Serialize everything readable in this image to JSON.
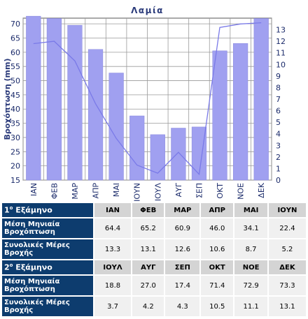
{
  "chart_data": {
    "type": "bar+line",
    "title": "Λαμία",
    "ylabel_left": "Βροχόπτωση (mm)",
    "ylim_left": [
      15,
      72
    ],
    "ylim_right": [
      0,
      14
    ],
    "yticks_left": [
      15,
      20,
      25,
      30,
      35,
      40,
      45,
      50,
      55,
      60,
      65,
      70
    ],
    "yticks_right": [
      0,
      1,
      2,
      3,
      4,
      5,
      6,
      7,
      8,
      9,
      10,
      11,
      12,
      13
    ],
    "categories": [
      "ΙΑΝ",
      "ΦΕΒ",
      "ΜΑΡ",
      "ΑΠΡ",
      "ΜΑΙ",
      "ΙΟΥΝ",
      "ΙΟΥΛ",
      "ΑΥΓ",
      "ΣΕΠ",
      "ΟΚΤ",
      "ΝΟΕ",
      "ΔΕΚ"
    ],
    "series": [
      {
        "type": "bar",
        "axis": "left",
        "values": [
          72.7,
          71.9,
          69.5,
          61.0,
          52.7,
          37.6,
          31.0,
          33.3,
          33.7,
          60.5,
          63.1,
          71.9
        ]
      },
      {
        "type": "line",
        "axis": "right",
        "values": [
          11.8,
          12.0,
          10.3,
          6.6,
          3.6,
          1.3,
          0.6,
          2.4,
          0.5,
          13.2,
          13.5,
          13.6
        ]
      }
    ],
    "colors": {
      "bar": "#a0a0f0",
      "bar_edge": "#8888dd",
      "line": "#7a7ae8",
      "plot_bg": "#ffffff",
      "grid": "#9a9a9a",
      "axis_text": "#1a2a6a"
    },
    "grid": true
  },
  "table": {
    "sem1_label_num": "1",
    "sem1_label_sup": "ο",
    "sem1_label_rest": " Εξάμηνο",
    "sem2_label_num": "2",
    "sem2_label_sup": "ο",
    "sem2_label_rest": " Εξάμηνο",
    "row_rain_label": "Μέση Μηνιαία Βροχόπτωση",
    "row_days_label": "Συνολικές Μέρες Βροχής",
    "sem1_months": [
      "ΙΑΝ",
      "ΦΕΒ",
      "ΜΑΡ",
      "ΑΠΡ",
      "ΜΑΙ",
      "ΙΟΥΝ"
    ],
    "sem1_rain": [
      "64.4",
      "65.2",
      "60.9",
      "46.0",
      "34.1",
      "22.4"
    ],
    "sem1_days": [
      "13.3",
      "13.1",
      "12.6",
      "10.6",
      "8.7",
      "5.2"
    ],
    "sem2_months": [
      "ΙΟΥΛ",
      "ΑΥΓ",
      "ΣΕΠ",
      "ΟΚΤ",
      "ΝΟΕ",
      "ΔΕΚ"
    ],
    "sem2_rain": [
      "18.8",
      "27.0",
      "17.4",
      "71.4",
      "72.9",
      "73.3"
    ],
    "sem2_days": [
      "3.7",
      "4.2",
      "4.3",
      "10.5",
      "11.1",
      "13.1"
    ]
  }
}
